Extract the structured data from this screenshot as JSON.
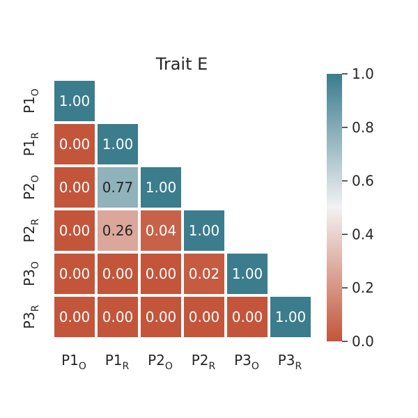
{
  "chart_data": {
    "type": "heatmap",
    "title": "Trait E",
    "lower_triangle_only": true,
    "rows": [
      {
        "base": "P1",
        "sub": "O"
      },
      {
        "base": "P1",
        "sub": "R"
      },
      {
        "base": "P2",
        "sub": "O"
      },
      {
        "base": "P2",
        "sub": "R"
      },
      {
        "base": "P3",
        "sub": "O"
      },
      {
        "base": "P3",
        "sub": "R"
      }
    ],
    "columns": [
      {
        "base": "P1",
        "sub": "O"
      },
      {
        "base": "P1",
        "sub": "R"
      },
      {
        "base": "P2",
        "sub": "O"
      },
      {
        "base": "P2",
        "sub": "R"
      },
      {
        "base": "P3",
        "sub": "O"
      },
      {
        "base": "P3",
        "sub": "R"
      }
    ],
    "values": [
      [
        1.0
      ],
      [
        0.0,
        1.0
      ],
      [
        0.0,
        0.77,
        1.0
      ],
      [
        0.0,
        0.26,
        0.04,
        1.0
      ],
      [
        0.0,
        0.0,
        0.0,
        0.02,
        1.0
      ],
      [
        0.0,
        0.0,
        0.0,
        0.0,
        0.0,
        1.0
      ]
    ],
    "cell_labels": [
      [
        "1.00"
      ],
      [
        "0.00",
        "1.00"
      ],
      [
        "0.00",
        "0.77",
        "1.00"
      ],
      [
        "0.00",
        "0.26",
        "0.04",
        "1.00"
      ],
      [
        "0.00",
        "0.00",
        "0.00",
        "0.02",
        "1.00"
      ],
      [
        "0.00",
        "0.00",
        "0.00",
        "0.00",
        "0.00",
        "1.00"
      ]
    ],
    "colorbar": {
      "vmin": 0.0,
      "vmax": 1.0,
      "ticks": [
        "0.0",
        "0.2",
        "0.4",
        "0.6",
        "0.8",
        "1.0"
      ],
      "colors": {
        "low": "#c3553a",
        "mid": "#f2f2f2",
        "high": "#3b7c8d"
      }
    },
    "grid": false,
    "colorbar_placement": "right"
  }
}
